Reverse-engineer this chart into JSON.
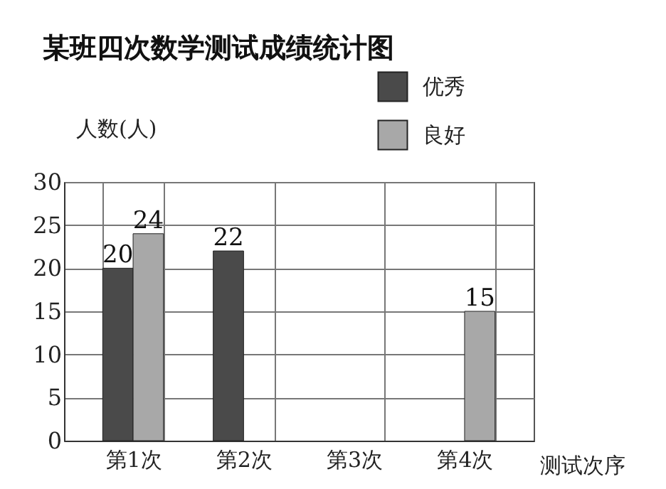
{
  "chart_data": {
    "type": "bar",
    "title": "某班四次数学测试成绩统计图",
    "xlabel": "测试次序",
    "ylabel": "人数(人)",
    "categories": [
      "第1次",
      "第2次",
      "第3次",
      "第4次"
    ],
    "series": [
      {
        "name": "优秀",
        "color": "#4a4a4a",
        "values": [
          20,
          22,
          null,
          null
        ],
        "value_labels": [
          "20",
          "22",
          null,
          null
        ]
      },
      {
        "name": "良好",
        "color": "#a8a8a8",
        "values": [
          24,
          null,
          null,
          15
        ],
        "value_labels": [
          "24",
          null,
          null,
          "15"
        ]
      }
    ],
    "ylim": [
      0,
      30
    ],
    "yticks": [
      0,
      5,
      10,
      15,
      20,
      25,
      30
    ],
    "grid": true,
    "legend": "top right"
  }
}
